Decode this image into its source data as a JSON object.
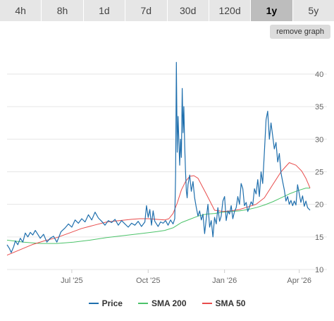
{
  "tabs": [
    {
      "label": "4h"
    },
    {
      "label": "8h"
    },
    {
      "label": "1d"
    },
    {
      "label": "7d"
    },
    {
      "label": "30d"
    },
    {
      "label": "120d"
    },
    {
      "label": "1y"
    },
    {
      "label": "5y"
    }
  ],
  "active_tab": "1y",
  "remove_graph_label": "remove graph",
  "colors": {
    "price": "#1f6fad",
    "sma200": "#4cc36a",
    "sma50": "#e84c4c",
    "grid": "#e6e6e6"
  },
  "chart_data": {
    "type": "line",
    "title": "",
    "xlabel": "",
    "ylabel": "",
    "ylim": [
      10,
      44
    ],
    "xlim": [
      0,
      365
    ],
    "grid": true,
    "legend": "bottom",
    "y_ticks": [
      10,
      15,
      20,
      25,
      30,
      35,
      40
    ],
    "x_ticks": [
      {
        "label": "Jul '25",
        "x": 78
      },
      {
        "label": "Oct '25",
        "x": 170
      },
      {
        "label": "Jan '26",
        "x": 262
      },
      {
        "label": "Apr '26",
        "x": 352
      }
    ],
    "series": [
      {
        "name": "Price",
        "x": [
          0,
          3,
          5,
          8,
          10,
          13,
          16,
          19,
          22,
          25,
          28,
          31,
          34,
          37,
          40,
          44,
          48,
          52,
          56,
          60,
          65,
          70,
          74,
          78,
          82,
          86,
          90,
          94,
          98,
          102,
          106,
          110,
          114,
          118,
          122,
          126,
          130,
          134,
          138,
          142,
          146,
          150,
          154,
          158,
          162,
          166,
          168,
          170,
          172,
          174,
          176,
          178,
          180,
          182,
          185,
          188,
          191,
          194,
          197,
          200,
          202,
          203,
          204,
          205,
          206,
          207,
          208,
          209,
          210,
          211,
          212,
          213,
          214,
          215,
          216,
          217,
          218,
          220,
          222,
          224,
          226,
          228,
          230,
          232,
          234,
          236,
          238,
          240,
          242,
          244,
          246,
          248,
          250,
          252,
          254,
          256,
          258,
          260,
          262,
          264,
          266,
          268,
          270,
          272,
          274,
          276,
          278,
          280,
          282,
          284,
          286,
          288,
          290,
          292,
          294,
          296,
          298,
          300,
          302,
          304,
          306,
          308,
          310,
          312,
          314,
          316,
          318,
          320,
          322,
          324,
          326,
          328,
          330,
          332,
          334,
          336,
          338,
          340,
          342,
          344,
          346,
          348,
          350,
          352,
          354,
          356,
          358,
          360,
          362,
          365
        ],
        "values": [
          13.8,
          13.2,
          12.6,
          13.5,
          14.4,
          13.8,
          14.8,
          14.2,
          15.6,
          15.0,
          15.7,
          15.3,
          16.0,
          15.4,
          14.8,
          15.4,
          14.2,
          14.8,
          15.1,
          14.2,
          15.8,
          16.4,
          17.0,
          16.5,
          17.6,
          17.1,
          17.8,
          17.3,
          18.4,
          17.6,
          18.8,
          17.9,
          17.4,
          16.8,
          17.5,
          17.2,
          17.7,
          16.8,
          17.5,
          17.0,
          16.5,
          17.1,
          16.8,
          17.4,
          16.6,
          17.3,
          19.8,
          18.0,
          19.2,
          16.8,
          19.0,
          17.4,
          17.0,
          16.6,
          17.3,
          17.1,
          17.5,
          16.8,
          17.6,
          17.0,
          17.8,
          24.5,
          41.8,
          28.0,
          33.5,
          29.5,
          26.0,
          30.0,
          27.2,
          37.8,
          31.0,
          35.0,
          29.0,
          25.0,
          22.0,
          21.0,
          23.0,
          24.5,
          22.0,
          23.5,
          21.0,
          19.5,
          18.2,
          19.0,
          17.6,
          18.5,
          15.5,
          17.8,
          20.0,
          16.5,
          17.5,
          15.0,
          18.0,
          17.0,
          19.5,
          17.4,
          18.2,
          20.5,
          21.2,
          17.5,
          19.0,
          18.5,
          19.8,
          17.8,
          18.9,
          19.5,
          21.2,
          20.0,
          23.2,
          22.4,
          19.8,
          20.3,
          18.9,
          19.6,
          20.4,
          19.9,
          22.4,
          21.6,
          23.8,
          21.2,
          25.0,
          23.2,
          28.0,
          33.0,
          34.3,
          30.0,
          32.5,
          30.5,
          28.5,
          29.5,
          26.5,
          27.8,
          24.8,
          23.5,
          22.2,
          20.5,
          21.2,
          20.0,
          20.6,
          19.8,
          20.5,
          19.9,
          23.0,
          21.6,
          20.3,
          21.3,
          19.7,
          20.5,
          19.5,
          19.1
        ]
      },
      {
        "name": "SMA 200",
        "x": [
          0,
          20,
          40,
          60,
          80,
          100,
          120,
          140,
          160,
          180,
          190,
          200,
          210,
          220,
          230,
          240,
          250,
          260,
          270,
          280,
          290,
          300,
          310,
          320,
          330,
          340,
          350,
          360,
          365
        ],
        "values": [
          14.5,
          14.2,
          14.0,
          14.0,
          14.2,
          14.5,
          14.9,
          15.2,
          15.5,
          15.8,
          16.0,
          16.4,
          17.2,
          17.7,
          18.2,
          18.5,
          18.6,
          18.8,
          18.9,
          19.0,
          19.2,
          19.5,
          19.9,
          20.4,
          21.0,
          21.6,
          22.1,
          22.5,
          22.5
        ]
      },
      {
        "name": "SMA 50",
        "x": [
          0,
          15,
          30,
          45,
          60,
          75,
          90,
          105,
          120,
          135,
          150,
          160,
          170,
          180,
          190,
          195,
          200,
          205,
          210,
          215,
          220,
          225,
          230,
          240,
          250,
          260,
          270,
          280,
          290,
          300,
          310,
          320,
          330,
          340,
          348,
          355,
          360,
          365
        ],
        "values": [
          12.2,
          13.0,
          13.8,
          14.4,
          14.9,
          15.6,
          16.3,
          16.8,
          17.3,
          17.5,
          17.7,
          17.8,
          17.8,
          17.7,
          17.6,
          17.8,
          18.6,
          20.2,
          22.2,
          23.5,
          24.3,
          24.4,
          24.0,
          21.6,
          19.1,
          18.9,
          19.0,
          19.2,
          19.6,
          20.0,
          21.0,
          23.0,
          25.0,
          26.4,
          26.0,
          25.1,
          24.0,
          22.5
        ]
      }
    ]
  }
}
